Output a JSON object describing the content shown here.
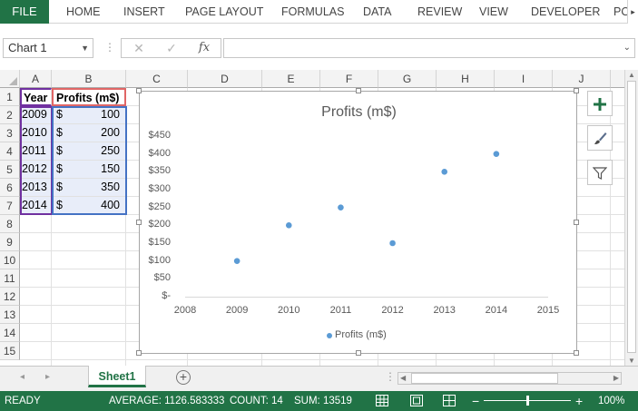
{
  "ribbon": {
    "file_label": "FILE",
    "tabs": [
      "HOME",
      "INSERT",
      "PAGE LAYOUT",
      "FORMULAS",
      "DATA",
      "REVIEW",
      "VIEW",
      "DEVELOPER",
      "PO"
    ],
    "scroll_glyph": "▸"
  },
  "formula_bar": {
    "name_box": "Chart 1",
    "cancel_glyph": "✕",
    "enter_glyph": "✓",
    "fx_label": "fx",
    "formula_value": ""
  },
  "grid": {
    "columns": [
      "A",
      "B",
      "C",
      "D",
      "E",
      "F",
      "G",
      "H",
      "I",
      "J"
    ],
    "rows": [
      "1",
      "2",
      "3",
      "4",
      "5",
      "6",
      "7",
      "8",
      "9",
      "10",
      "11",
      "12",
      "13",
      "14",
      "15"
    ],
    "header": {
      "year": "Year",
      "profits": "Profits (m$)"
    },
    "currency": "$",
    "data": [
      {
        "year": "2009",
        "amount": "100"
      },
      {
        "year": "2010",
        "amount": "200"
      },
      {
        "year": "2011",
        "amount": "250"
      },
      {
        "year": "2012",
        "amount": "150"
      },
      {
        "year": "2013",
        "amount": "350"
      },
      {
        "year": "2014",
        "amount": "400"
      }
    ]
  },
  "chart_data": {
    "type": "scatter",
    "title": "Profits (m$)",
    "x": [
      2009,
      2010,
      2011,
      2012,
      2013,
      2014
    ],
    "y": [
      100,
      200,
      250,
      150,
      350,
      400
    ],
    "xlim": [
      2008,
      2015
    ],
    "ylim": [
      0,
      450
    ],
    "x_ticks": [
      "2008",
      "2009",
      "2010",
      "2011",
      "2012",
      "2013",
      "2014",
      "2015"
    ],
    "y_ticks": [
      "$-",
      "$50",
      "$100",
      "$150",
      "$200",
      "$250",
      "$300",
      "$350",
      "$400",
      "$450"
    ],
    "series": [
      {
        "name": "Profits (m$)",
        "color": "#5b9bd5"
      }
    ],
    "legend": "bottom",
    "grid": false
  },
  "chart_buttons": [
    "chart-elements",
    "chart-styles",
    "chart-filters"
  ],
  "sheets": {
    "active": "Sheet1",
    "add_glyph": "+"
  },
  "status": {
    "mode": "READY",
    "average": "AVERAGE: 1126.583333",
    "count": "COUNT: 14",
    "sum": "SUM: 13519",
    "zoom": "100%",
    "minus": "−",
    "plus": "+"
  },
  "colors": {
    "accent": "#217346",
    "series": "#5b9bd5",
    "selection_fill": "#e8edf9"
  }
}
